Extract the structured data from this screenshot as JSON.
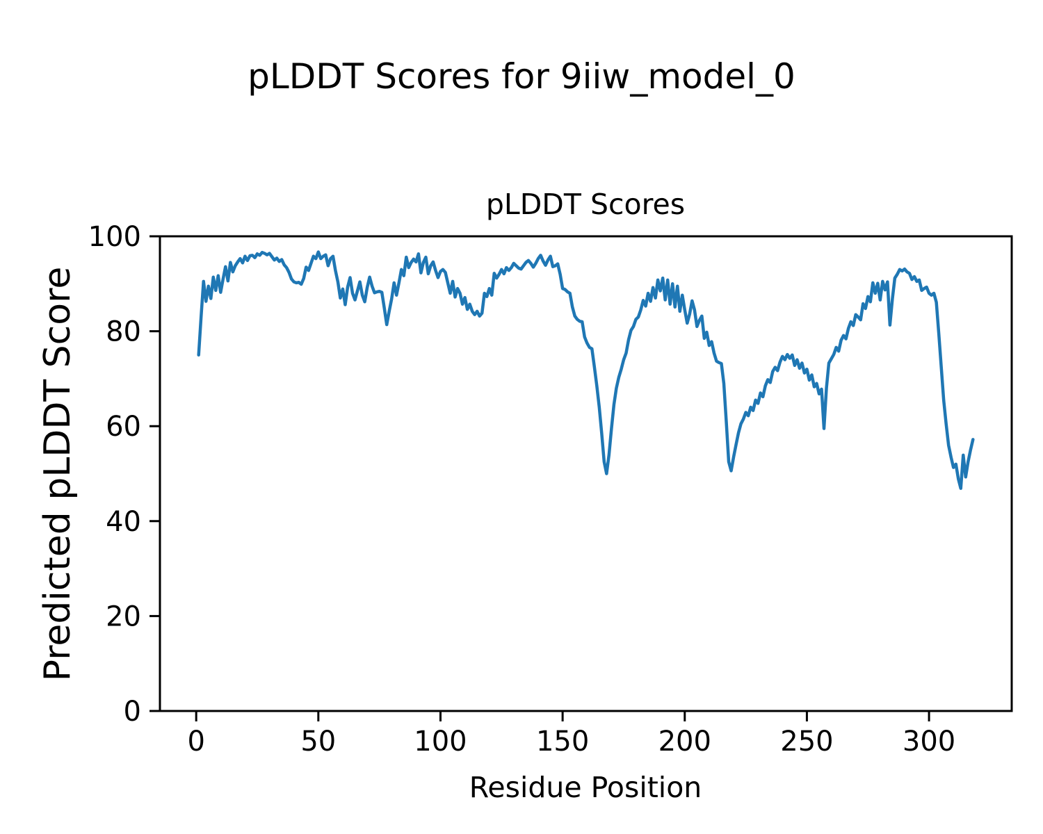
{
  "figure": {
    "suptitle": "pLDDT Scores for 9iiw_model_0",
    "axes_title": "pLDDT Scores",
    "xlabel": "Residue Position",
    "ylabel": "Predicted pLDDT Score"
  },
  "chart_data": {
    "type": "line",
    "title": "pLDDT Scores",
    "suptitle": "pLDDT Scores for 9iiw_model_0",
    "xlabel": "Residue Position",
    "ylabel": "Predicted pLDDT Score",
    "grid": false,
    "legend": "none",
    "background": "#ffffff",
    "axis_color": "#000000",
    "xlim": [
      -14.85,
      333.85
    ],
    "ylim": [
      0,
      100
    ],
    "xticks": [
      0,
      50,
      100,
      150,
      200,
      250,
      300
    ],
    "yticks": [
      0,
      20,
      40,
      60,
      80,
      100
    ],
    "series": [
      {
        "name": "pLDDT",
        "color": "#1f77b4",
        "line_width": 4.5,
        "x_start": 1,
        "x_step": 1,
        "y": [
          75.0,
          83.0,
          90.5,
          86.3,
          89.5,
          86.9,
          91.4,
          88.6,
          91.7,
          88.2,
          91.0,
          93.6,
          90.6,
          94.5,
          92.5,
          93.8,
          94.6,
          95.3,
          94.4,
          95.8,
          94.9,
          95.9,
          96.0,
          95.5,
          96.3,
          96.0,
          96.6,
          96.4,
          96.1,
          96.4,
          95.7,
          95.0,
          95.4,
          94.7,
          95.1,
          94.0,
          93.4,
          92.4,
          91.0,
          90.4,
          90.2,
          90.3,
          89.9,
          91.1,
          93.5,
          92.8,
          94.3,
          95.8,
          95.3,
          96.7,
          95.3,
          95.8,
          96.1,
          93.8,
          95.3,
          95.8,
          92.8,
          90.4,
          87.0,
          88.9,
          85.6,
          89.3,
          91.3,
          88.0,
          86.6,
          88.5,
          90.4,
          87.6,
          86.2,
          89.2,
          91.4,
          89.5,
          88.1,
          88.3,
          88.4,
          88.2,
          84.9,
          81.4,
          84.2,
          86.8,
          90.2,
          87.6,
          90.2,
          93.0,
          91.7,
          95.6,
          93.4,
          94.5,
          95.2,
          94.6,
          96.3,
          92.3,
          94.5,
          95.6,
          92.1,
          93.8,
          94.6,
          92.8,
          91.3,
          92.6,
          93.0,
          92.4,
          90.2,
          88.0,
          90.5,
          87.2,
          89.0,
          88.0,
          85.7,
          87.1,
          84.6,
          85.7,
          84.2,
          83.5,
          84.2,
          83.2,
          83.8,
          88.0,
          87.3,
          89.0,
          87.6,
          92.2,
          91.2,
          92.0,
          93.0,
          92.1,
          93.4,
          92.8,
          93.4,
          94.3,
          93.8,
          93.3,
          93.1,
          93.8,
          94.5,
          94.9,
          94.3,
          93.5,
          94.3,
          95.3,
          96.0,
          94.8,
          93.9,
          95.0,
          95.8,
          93.6,
          93.8,
          94.2,
          92.0,
          89.0,
          88.8,
          88.3,
          88.0,
          85.1,
          83.2,
          82.5,
          82.1,
          82.0,
          78.8,
          77.5,
          76.6,
          76.3,
          72.5,
          68.5,
          64.0,
          58.5,
          52.5,
          50.0,
          54.0,
          59.5,
          64.5,
          68.0,
          70.3,
          72.0,
          74.0,
          75.4,
          78.2,
          80.2,
          81.0,
          82.5,
          83.0,
          84.5,
          86.5,
          85.3,
          88.0,
          86.3,
          89.2,
          87.0,
          90.8,
          88.5,
          91.2,
          86.6,
          90.8,
          85.7,
          90.0,
          85.1,
          89.5,
          84.2,
          87.6,
          84.5,
          81.7,
          83.6,
          86.4,
          84.5,
          81.0,
          82.3,
          83.2,
          78.5,
          79.8,
          77.0,
          77.8,
          75.4,
          73.7,
          73.4,
          73.2,
          69.0,
          61.0,
          52.5,
          50.6,
          53.5,
          56.1,
          58.6,
          60.5,
          61.5,
          62.9,
          62.2,
          64.0,
          63.3,
          65.5,
          64.8,
          67.0,
          66.2,
          68.5,
          69.8,
          69.2,
          71.5,
          72.4,
          71.7,
          73.5,
          74.7,
          74.0,
          75.1,
          74.3,
          75.0,
          72.8,
          74.0,
          72.2,
          73.3,
          71.2,
          72.0,
          69.7,
          70.8,
          68.3,
          69.0,
          66.8,
          67.8,
          59.5,
          68.0,
          73.3,
          74.2,
          75.1,
          76.6,
          75.8,
          78.1,
          79.1,
          78.4,
          80.6,
          82.0,
          81.2,
          83.5,
          83.0,
          82.4,
          85.8,
          84.8,
          87.3,
          86.2,
          90.2,
          88.0,
          90.1,
          86.6,
          90.5,
          88.7,
          90.4,
          81.3,
          86.8,
          91.2,
          92.0,
          93.0,
          92.7,
          93.1,
          92.5,
          92.2,
          90.9,
          91.5,
          90.5,
          90.8,
          88.6,
          89.0,
          89.3,
          88.0,
          87.6,
          88.0,
          86.1,
          79.5,
          72.5,
          65.5,
          60.5,
          56.0,
          53.5,
          51.3,
          52.0,
          48.9,
          46.9,
          53.9,
          49.3,
          52.5,
          55.0,
          57.2
        ]
      }
    ]
  }
}
